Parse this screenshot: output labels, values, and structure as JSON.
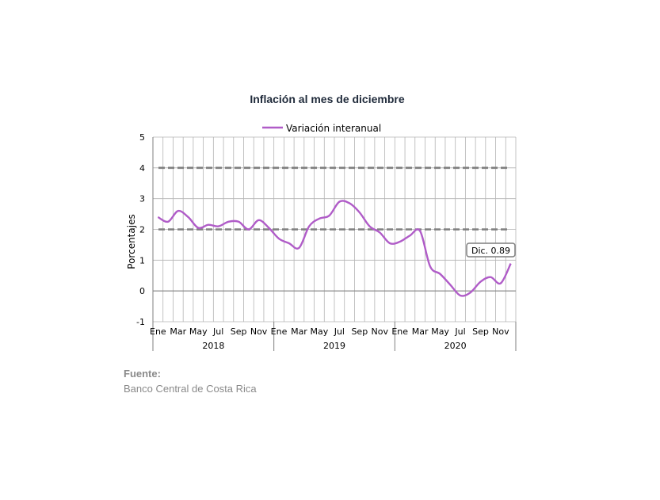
{
  "chart_data": {
    "type": "line",
    "title": "Inflación al mes de diciembre",
    "ylabel": "Porcentajes",
    "xlabel": "",
    "ylim": [
      -1,
      5
    ],
    "yticks": [
      -1,
      0,
      1,
      2,
      3,
      4,
      5
    ],
    "grid": true,
    "legend_position": "top",
    "x_tick_labels": [
      "Ene",
      "Mar",
      "May",
      "Jul",
      "Sep",
      "Nov",
      "Ene",
      "Mar",
      "May",
      "Jul",
      "Sep",
      "Nov",
      "Ene",
      "Mar",
      "May",
      "Jul",
      "Sep",
      "Nov"
    ],
    "x_groups": [
      "2018",
      "2019",
      "2020"
    ],
    "categories": [
      "2018-01",
      "2018-02",
      "2018-03",
      "2018-04",
      "2018-05",
      "2018-06",
      "2018-07",
      "2018-08",
      "2018-09",
      "2018-10",
      "2018-11",
      "2018-12",
      "2019-01",
      "2019-02",
      "2019-03",
      "2019-04",
      "2019-05",
      "2019-06",
      "2019-07",
      "2019-08",
      "2019-09",
      "2019-10",
      "2019-11",
      "2019-12",
      "2020-01",
      "2020-02",
      "2020-03",
      "2020-04",
      "2020-05",
      "2020-06",
      "2020-07",
      "2020-08",
      "2020-09",
      "2020-10",
      "2020-11",
      "2020-12"
    ],
    "series": [
      {
        "name": "Variación interanual",
        "color": "#b05cc8",
        "values": [
          2.4,
          2.25,
          2.6,
          2.4,
          2.05,
          2.15,
          2.1,
          2.25,
          2.25,
          2.0,
          2.3,
          2.05,
          1.7,
          1.55,
          1.4,
          2.1,
          2.35,
          2.45,
          2.9,
          2.85,
          2.55,
          2.1,
          1.9,
          1.55,
          1.6,
          1.8,
          1.95,
          0.8,
          0.55,
          0.2,
          -0.15,
          -0.05,
          0.3,
          0.45,
          0.25,
          0.89
        ]
      }
    ],
    "reference_lines": [
      {
        "y": 4,
        "style": "dashed",
        "color": "#7f7f7f"
      },
      {
        "y": 2,
        "style": "dashed",
        "color": "#7f7f7f"
      }
    ],
    "annotation": {
      "text": "Dic. 0.89"
    }
  },
  "source": {
    "label": "Fuente:",
    "value": "Banco Central de Costa Rica"
  }
}
